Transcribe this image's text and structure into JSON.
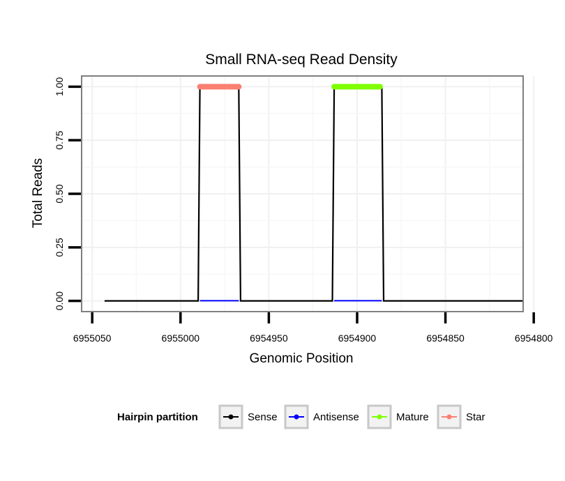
{
  "chart_data": {
    "type": "line",
    "title": "Small RNA-seq Read Density",
    "xlabel": "Genomic Position",
    "ylabel": "Total Reads",
    "x_reversed": true,
    "xlim": [
      6955056,
      6954806
    ],
    "ylim": [
      -0.05,
      1.05
    ],
    "x_ticks": [
      6955050,
      6955000,
      6954950,
      6954900,
      6954850,
      6954800
    ],
    "x_tick_labels": [
      "6955050",
      "6955000",
      "6954950",
      "6954900",
      "6954850",
      "6954800"
    ],
    "y_ticks": [
      0,
      0.25,
      0.5,
      0.75,
      1
    ],
    "y_tick_labels": [
      "0.00",
      "0.25",
      "0.50",
      "0.75",
      "1.00"
    ],
    "legend": {
      "title": "Hairpin partition",
      "position": "bottom",
      "entries": [
        {
          "label": "Sense",
          "color": "#000000"
        },
        {
          "label": "Antisense",
          "color": "#0000ff"
        },
        {
          "label": "Mature",
          "color": "#7fff00"
        },
        {
          "label": "Star",
          "color": "#fa8072"
        }
      ]
    },
    "series": [
      {
        "name": "Sense",
        "color": "#000000",
        "x": [
          6955043,
          6954990,
          6954989,
          6954967,
          6954966,
          6954914,
          6954913,
          6954886,
          6954885,
          6954806
        ],
        "y": [
          0,
          0,
          1,
          1,
          0,
          0,
          1,
          1,
          0,
          0
        ]
      },
      {
        "name": "Antisense",
        "color": "#0000ff",
        "segments": [
          {
            "x": [
              6954989,
              6954967
            ],
            "y": [
              0,
              0
            ]
          },
          {
            "x": [
              6954913,
              6954886
            ],
            "y": [
              0,
              0
            ]
          }
        ]
      },
      {
        "name": "Star",
        "color": "#fa8072",
        "x": [
          6954989,
          6954967
        ],
        "y": [
          1,
          1
        ]
      },
      {
        "name": "Mature",
        "color": "#7fff00",
        "x": [
          6954913,
          6954887
        ],
        "y": [
          1,
          1
        ]
      }
    ]
  }
}
